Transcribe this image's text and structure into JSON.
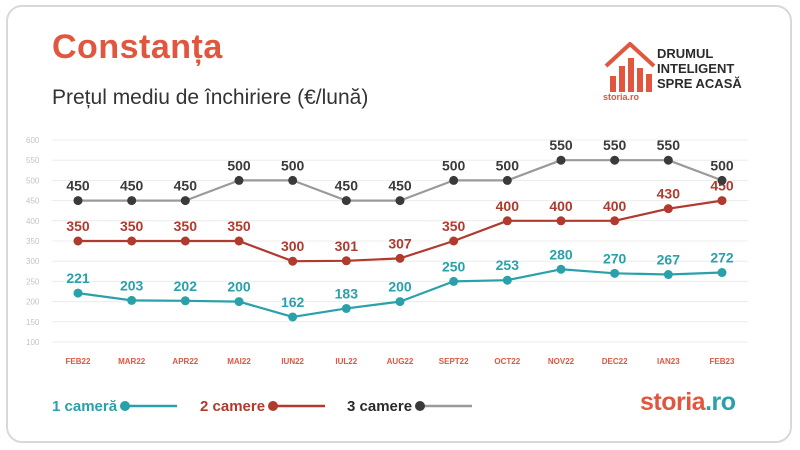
{
  "header": {
    "title": "Constanța",
    "subtitle": "Prețul mediu de închiriere (€/lună)"
  },
  "brand": {
    "slogan": [
      "DRUMUL",
      "INTELIGENT",
      "SPRE ACASĂ"
    ],
    "small_logo": "storia.ro",
    "footer_logo_main": "storia",
    "footer_logo_suffix": ".ro"
  },
  "colors": {
    "accent": "#e0563e",
    "series_1": "#2aa1aa",
    "series_2": "#b03a2e",
    "series_3": "#3a3a3a",
    "grid": "#ececec"
  },
  "chart_data": {
    "type": "line",
    "categories": [
      "FEB22",
      "MAR22",
      "APR22",
      "MAI22",
      "IUN22",
      "IUL22",
      "AUG22",
      "SEPT22",
      "OCT22",
      "NOV22",
      "DEC22",
      "IAN23",
      "FEB23"
    ],
    "yticks": [
      100,
      150,
      200,
      250,
      300,
      350,
      400,
      450,
      500,
      550,
      600
    ],
    "ylim": [
      100,
      600
    ],
    "grid": true,
    "legend_position": "bottom",
    "series": [
      {
        "name": "1 cameră",
        "values": [
          221,
          203,
          202,
          200,
          162,
          183,
          200,
          250,
          253,
          280,
          270,
          267,
          272
        ]
      },
      {
        "name": "2 camere",
        "values": [
          350,
          350,
          350,
          350,
          300,
          301,
          307,
          350,
          400,
          400,
          400,
          430,
          450
        ]
      },
      {
        "name": "3 camere",
        "values": [
          450,
          450,
          450,
          500,
          500,
          450,
          450,
          500,
          500,
          550,
          550,
          550,
          500
        ]
      }
    ]
  }
}
